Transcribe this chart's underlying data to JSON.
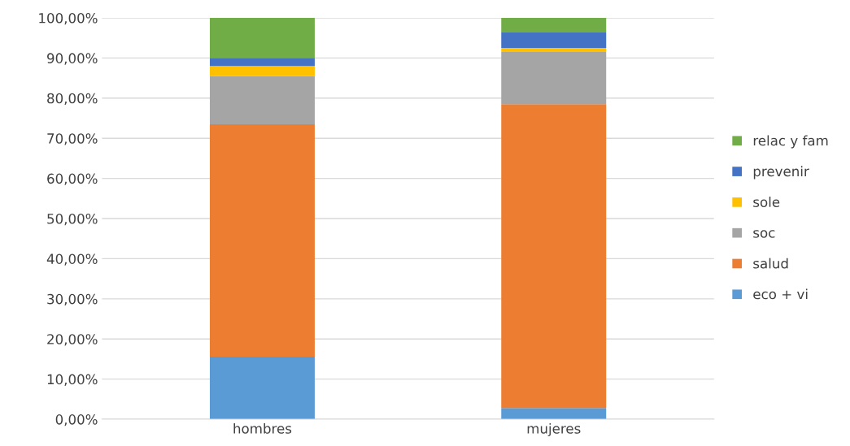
{
  "chart_data": {
    "type": "bar",
    "stacked": true,
    "categories": [
      "hombres",
      "mujeres"
    ],
    "series": [
      {
        "name": "eco + vi",
        "color": "#5b9bd5",
        "values": [
          15.6,
          2.8
        ]
      },
      {
        "name": "salud",
        "color": "#ed7d31",
        "values": [
          57.9,
          75.7
        ]
      },
      {
        "name": "soc",
        "color": "#a5a5a5",
        "values": [
          12.0,
          13.0
        ]
      },
      {
        "name": "sole",
        "color": "#ffc000",
        "values": [
          2.5,
          1.0
        ]
      },
      {
        "name": "prevenir",
        "color": "#4472c4",
        "values": [
          2.0,
          4.0
        ]
      },
      {
        "name": "relac y fam",
        "color": "#70ad47",
        "values": [
          10.0,
          3.5
        ]
      }
    ],
    "ylim": [
      0,
      100
    ],
    "yticks": [
      {
        "value": 0,
        "label": "0,00%"
      },
      {
        "value": 10,
        "label": "10,00%"
      },
      {
        "value": 20,
        "label": "20,00%"
      },
      {
        "value": 30,
        "label": "30,00%"
      },
      {
        "value": 40,
        "label": "40,00%"
      },
      {
        "value": 50,
        "label": "50,00%"
      },
      {
        "value": 60,
        "label": "60,00%"
      },
      {
        "value": 70,
        "label": "70,00%"
      },
      {
        "value": 80,
        "label": "80,00%"
      },
      {
        "value": 90,
        "label": "90,00%"
      },
      {
        "value": 100,
        "label": "100,00%"
      }
    ],
    "grid": "y",
    "legend": "right"
  }
}
